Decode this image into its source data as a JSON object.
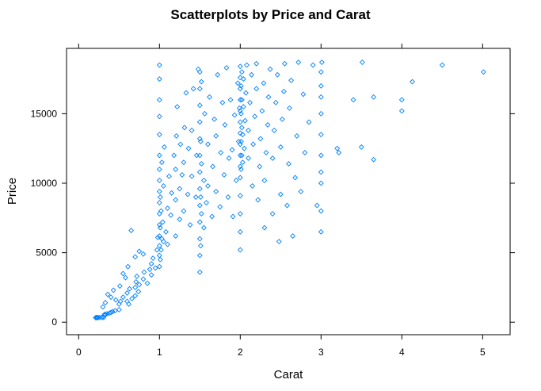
{
  "chart_data": {
    "type": "scatter",
    "title": "Scatterplots by Price and Carat",
    "xlabel": "Carat",
    "ylabel": "Price",
    "xlim": [
      -0.15,
      5.34
    ],
    "ylim": [
      -900,
      19700
    ],
    "xticks": [
      0,
      1,
      2,
      3,
      4,
      5
    ],
    "xtick_labels": [
      "0",
      "1",
      "2",
      "3",
      "4",
      "5"
    ],
    "yticks": [
      0,
      5000,
      10000,
      15000
    ],
    "ytick_labels": [
      "0",
      "5000",
      "10000",
      "15000"
    ],
    "marker": "diamond",
    "color": "#0080ff",
    "grid": false,
    "points": [
      [
        0.23,
        326
      ],
      [
        0.21,
        326
      ],
      [
        0.23,
        327
      ],
      [
        0.29,
        334
      ],
      [
        0.31,
        335
      ],
      [
        0.24,
        336
      ],
      [
        0.26,
        337
      ],
      [
        0.22,
        337
      ],
      [
        0.3,
        402
      ],
      [
        0.3,
        420
      ],
      [
        0.33,
        552
      ],
      [
        0.32,
        553
      ],
      [
        0.35,
        600
      ],
      [
        0.38,
        650
      ],
      [
        0.4,
        700
      ],
      [
        0.42,
        760
      ],
      [
        0.45,
        820
      ],
      [
        0.5,
        900
      ],
      [
        0.5,
        1300
      ],
      [
        0.52,
        1500
      ],
      [
        0.55,
        1800
      ],
      [
        0.6,
        1500
      ],
      [
        0.6,
        2100
      ],
      [
        0.63,
        2400
      ],
      [
        0.7,
        1900
      ],
      [
        0.7,
        2500
      ],
      [
        0.71,
        2900
      ],
      [
        0.72,
        3300
      ],
      [
        0.75,
        2700
      ],
      [
        0.8,
        3100
      ],
      [
        0.81,
        3600
      ],
      [
        0.9,
        3400
      ],
      [
        0.9,
        4200
      ],
      [
        0.95,
        3900
      ],
      [
        0.3,
        1100
      ],
      [
        0.33,
        1400
      ],
      [
        0.36,
        2000
      ],
      [
        0.4,
        1800
      ],
      [
        0.43,
        2300
      ],
      [
        0.46,
        1600
      ],
      [
        0.51,
        2600
      ],
      [
        0.55,
        3500
      ],
      [
        0.58,
        3200
      ],
      [
        0.61,
        4000
      ],
      [
        0.65,
        6600
      ],
      [
        0.7,
        4700
      ],
      [
        0.75,
        5100
      ],
      [
        0.8,
        4900
      ],
      [
        0.62,
        1300
      ],
      [
        0.66,
        1700
      ],
      [
        0.74,
        2200
      ],
      [
        0.85,
        2800
      ],
      [
        0.88,
        3800
      ],
      [
        0.92,
        4600
      ],
      [
        0.97,
        5200
      ],
      [
        0.98,
        6100
      ],
      [
        1.0,
        4000
      ],
      [
        1.0,
        4800
      ],
      [
        1.0,
        5500
      ],
      [
        1.0,
        6200
      ],
      [
        1.0,
        7000
      ],
      [
        1.0,
        7800
      ],
      [
        1.0,
        8600
      ],
      [
        1.0,
        9400
      ],
      [
        1.0,
        10200
      ],
      [
        1.0,
        11000
      ],
      [
        1.0,
        12000
      ],
      [
        1.0,
        13500
      ],
      [
        1.0,
        14800
      ],
      [
        1.0,
        16000
      ],
      [
        1.0,
        17500
      ],
      [
        1.0,
        18500
      ],
      [
        1.01,
        4500
      ],
      [
        1.01,
        6800
      ],
      [
        1.01,
        9000
      ],
      [
        1.02,
        5200
      ],
      [
        1.02,
        8000
      ],
      [
        1.03,
        6000
      ],
      [
        1.03,
        11500
      ],
      [
        1.04,
        7200
      ],
      [
        1.05,
        5800
      ],
      [
        1.05,
        9800
      ],
      [
        1.06,
        12600
      ],
      [
        1.08,
        6500
      ],
      [
        1.1,
        8200
      ],
      [
        1.1,
        5600
      ],
      [
        1.12,
        10500
      ],
      [
        1.14,
        7700
      ],
      [
        1.15,
        9300
      ],
      [
        1.18,
        12000
      ],
      [
        1.2,
        6200
      ],
      [
        1.2,
        8800
      ],
      [
        1.2,
        11000
      ],
      [
        1.21,
        13400
      ],
      [
        1.22,
        15500
      ],
      [
        1.25,
        7400
      ],
      [
        1.25,
        9600
      ],
      [
        1.26,
        12800
      ],
      [
        1.28,
        10600
      ],
      [
        1.3,
        8000
      ],
      [
        1.3,
        11500
      ],
      [
        1.31,
        14000
      ],
      [
        1.33,
        16500
      ],
      [
        1.35,
        9200
      ],
      [
        1.36,
        12500
      ],
      [
        1.38,
        7000
      ],
      [
        1.4,
        10500
      ],
      [
        1.4,
        13800
      ],
      [
        1.42,
        16800
      ],
      [
        1.45,
        9000
      ],
      [
        1.46,
        12000
      ],
      [
        1.48,
        18200
      ],
      [
        1.5,
        3600
      ],
      [
        1.5,
        4800
      ],
      [
        1.5,
        6000
      ],
      [
        1.5,
        7200
      ],
      [
        1.5,
        8400
      ],
      [
        1.5,
        9600
      ],
      [
        1.5,
        10800
      ],
      [
        1.5,
        12000
      ],
      [
        1.5,
        13200
      ],
      [
        1.5,
        14400
      ],
      [
        1.5,
        15600
      ],
      [
        1.5,
        16800
      ],
      [
        1.5,
        18000
      ],
      [
        1.51,
        5500
      ],
      [
        1.51,
        9000
      ],
      [
        1.51,
        13000
      ],
      [
        1.52,
        7800
      ],
      [
        1.52,
        11400
      ],
      [
        1.52,
        17300
      ],
      [
        1.55,
        6800
      ],
      [
        1.55,
        10200
      ],
      [
        1.56,
        15000
      ],
      [
        1.58,
        8600
      ],
      [
        1.6,
        9800
      ],
      [
        1.6,
        12800
      ],
      [
        1.62,
        16200
      ],
      [
        1.65,
        7600
      ],
      [
        1.66,
        11200
      ],
      [
        1.68,
        14600
      ],
      [
        1.7,
        9400
      ],
      [
        1.7,
        13400
      ],
      [
        1.72,
        17800
      ],
      [
        1.75,
        8300
      ],
      [
        1.76,
        12200
      ],
      [
        1.78,
        15800
      ],
      [
        1.8,
        10600
      ],
      [
        1.81,
        14200
      ],
      [
        1.83,
        18300
      ],
      [
        1.85,
        9000
      ],
      [
        1.86,
        11800
      ],
      [
        1.88,
        16000
      ],
      [
        1.9,
        12400
      ],
      [
        1.91,
        7600
      ],
      [
        1.93,
        14900
      ],
      [
        1.95,
        10200
      ],
      [
        1.97,
        17200
      ],
      [
        1.98,
        13000
      ],
      [
        1.99,
        15400
      ],
      [
        2.0,
        5200
      ],
      [
        2.0,
        6500
      ],
      [
        2.0,
        7800
      ],
      [
        2.0,
        9100
      ],
      [
        2.0,
        10400
      ],
      [
        2.0,
        11200
      ],
      [
        2.0,
        12000
      ],
      [
        2.0,
        12800
      ],
      [
        2.0,
        13600
      ],
      [
        2.0,
        14400
      ],
      [
        2.0,
        15200
      ],
      [
        2.0,
        16000
      ],
      [
        2.0,
        16800
      ],
      [
        2.0,
        17600
      ],
      [
        2.0,
        18400
      ],
      [
        2.01,
        11000
      ],
      [
        2.01,
        13000
      ],
      [
        2.01,
        15000
      ],
      [
        2.01,
        17000
      ],
      [
        2.02,
        12000
      ],
      [
        2.02,
        14000
      ],
      [
        2.02,
        16000
      ],
      [
        2.02,
        18000
      ],
      [
        2.03,
        11500
      ],
      [
        2.03,
        13500
      ],
      [
        2.04,
        15500
      ],
      [
        2.04,
        17500
      ],
      [
        2.05,
        12500
      ],
      [
        2.06,
        14500
      ],
      [
        2.07,
        16500
      ],
      [
        2.08,
        18500
      ],
      [
        2.1,
        11800
      ],
      [
        2.1,
        13800
      ],
      [
        2.12,
        15800
      ],
      [
        2.14,
        17800
      ],
      [
        2.15,
        9800
      ],
      [
        2.16,
        12800
      ],
      [
        2.18,
        14800
      ],
      [
        2.2,
        16800
      ],
      [
        2.2,
        18600
      ],
      [
        2.22,
        8800
      ],
      [
        2.24,
        11200
      ],
      [
        2.25,
        13200
      ],
      [
        2.27,
        15200
      ],
      [
        2.29,
        17200
      ],
      [
        2.3,
        6800
      ],
      [
        2.3,
        10200
      ],
      [
        2.32,
        12200
      ],
      [
        2.34,
        14200
      ],
      [
        2.35,
        16200
      ],
      [
        2.37,
        18200
      ],
      [
        2.4,
        7800
      ],
      [
        2.4,
        11800
      ],
      [
        2.42,
        13800
      ],
      [
        2.44,
        15800
      ],
      [
        2.46,
        17800
      ],
      [
        2.48,
        5800
      ],
      [
        2.5,
        9200
      ],
      [
        2.5,
        12600
      ],
      [
        2.52,
        14600
      ],
      [
        2.54,
        16600
      ],
      [
        2.55,
        18600
      ],
      [
        2.58,
        8400
      ],
      [
        2.6,
        11400
      ],
      [
        2.61,
        15400
      ],
      [
        2.63,
        17400
      ],
      [
        2.65,
        6200
      ],
      [
        2.68,
        10400
      ],
      [
        2.7,
        13400
      ],
      [
        2.72,
        18700
      ],
      [
        2.75,
        9400
      ],
      [
        2.78,
        16400
      ],
      [
        2.8,
        12200
      ],
      [
        2.85,
        14400
      ],
      [
        2.9,
        18500
      ],
      [
        2.95,
        8400
      ],
      [
        3.0,
        6500
      ],
      [
        3.0,
        8000
      ],
      [
        3.0,
        10000
      ],
      [
        3.0,
        10800
      ],
      [
        3.0,
        12000
      ],
      [
        3.0,
        13500
      ],
      [
        3.0,
        15000
      ],
      [
        3.0,
        16200
      ],
      [
        3.0,
        17000
      ],
      [
        3.0,
        18000
      ],
      [
        3.01,
        18700
      ],
      [
        3.2,
        12500
      ],
      [
        3.22,
        12200
      ],
      [
        3.4,
        16000
      ],
      [
        3.5,
        12600
      ],
      [
        3.51,
        18700
      ],
      [
        3.65,
        11700
      ],
      [
        3.65,
        16200
      ],
      [
        4.0,
        16000
      ],
      [
        4.0,
        15200
      ],
      [
        4.13,
        17300
      ],
      [
        4.5,
        18500
      ],
      [
        5.01,
        18000
      ]
    ]
  }
}
